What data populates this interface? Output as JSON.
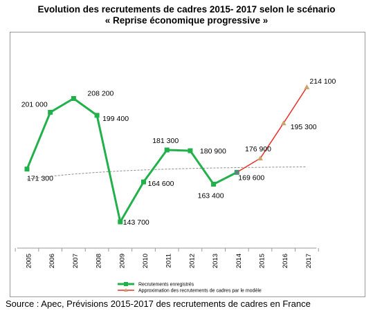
{
  "title_line1": "Evolution des recrutements de cadres 2015- 2017 selon le scénario",
  "title_line2": "« Reprise économique progressive »",
  "source": "Source : Apec, Prévisions 2015-2017 des recrutements de cadres en France",
  "chart_data": {
    "type": "line",
    "categories": [
      "2005",
      "2006",
      "2007",
      "2008",
      "2009",
      "2010",
      "2011",
      "2012",
      "2013",
      "2014",
      "2015",
      "2016",
      "2017"
    ],
    "series": [
      {
        "name": "Recrutements enregistrés",
        "color": "#22b04a",
        "values": [
          171300,
          201000,
          208200,
          199400,
          143700,
          164600,
          181300,
          180900,
          163400,
          169600,
          null,
          null,
          null
        ]
      },
      {
        "name": "Approximation des recrutements de cadres par le modèle",
        "color": "#e8302a",
        "marker_color": "#c8a46a",
        "values": [
          null,
          null,
          null,
          null,
          null,
          null,
          null,
          null,
          null,
          169600,
          176900,
          195300,
          214100
        ]
      }
    ],
    "trend": {
      "type": "dashed",
      "color": "#8c8c8c"
    },
    "data_labels": [
      {
        "x": "2005",
        "text": "171 300",
        "pos": "below-right"
      },
      {
        "x": "2006",
        "text": "201 000",
        "pos": "left"
      },
      {
        "x": "2007",
        "text": "208 200",
        "pos": "right"
      },
      {
        "x": "2008",
        "text": "199 400",
        "pos": "right"
      },
      {
        "x": "2009",
        "text": "143 700",
        "pos": "right"
      },
      {
        "x": "2010",
        "text": "164 600",
        "pos": "right"
      },
      {
        "x": "2011",
        "text": "181 300",
        "pos": "above"
      },
      {
        "x": "2012",
        "text": "180 900",
        "pos": "right"
      },
      {
        "x": "2013",
        "text": "163 400",
        "pos": "below"
      },
      {
        "x": "2014",
        "text": "169 600",
        "pos": "right"
      },
      {
        "x": "2015",
        "text": "176 900",
        "pos": "above-left"
      },
      {
        "x": "2016",
        "text": "195 300",
        "pos": "right"
      },
      {
        "x": "2017",
        "text": "214 100",
        "pos": "right"
      }
    ],
    "ylim": [
      130000,
      225000
    ],
    "grid": false,
    "legend_position": "bottom",
    "xlabel": "",
    "ylabel": ""
  }
}
